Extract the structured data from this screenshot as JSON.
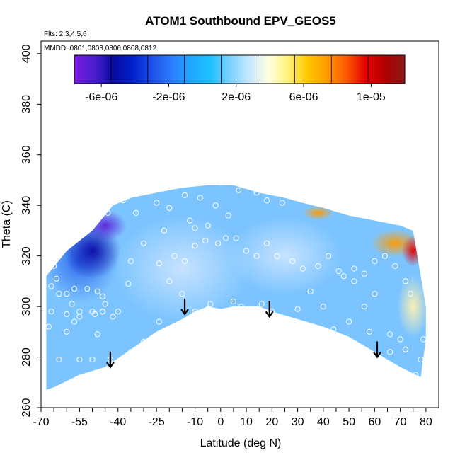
{
  "chart_data": {
    "type": "heatmap",
    "title": "ATOM1 Southbound EPV_GEOS5",
    "notes": [
      "Flts: 2,3,4,5,6",
      "MMDD: 0801,0803,0806,0808,0812"
    ],
    "xlabel": "Latitude (deg N)",
    "ylabel": "Theta (C)",
    "xlim": [
      -70,
      85
    ],
    "ylim": [
      260,
      405
    ],
    "x_ticks": [
      "-70",
      "-55",
      "-40",
      "-25",
      "-10",
      "0",
      "10",
      "20",
      "30",
      "40",
      "50",
      "60",
      "70",
      "80"
    ],
    "y_ticks": [
      "260",
      "280",
      "300",
      "320",
      "340",
      "360",
      "380",
      "400"
    ],
    "colorbar": {
      "range": [
        -7.6e-06,
        1.2e-05
      ],
      "tick_values": [
        -6e-06,
        -2e-06,
        2e-06,
        6e-06,
        1e-05
      ],
      "tick_labels": [
        "-6e-06",
        "-2e-06",
        "2e-06",
        "6e-06",
        "1e-05"
      ],
      "colors": [
        "#7a1be0",
        "#4a1fd0",
        "#0a0aa0",
        "#0020c8",
        "#1e50e8",
        "#2e7cff",
        "#1fa8ff",
        "#1ec0ff",
        "#7ad2ff",
        "#c6e8ff",
        "#ffffe0",
        "#fff27a",
        "#ffc800",
        "#ff9a00",
        "#ff5800",
        "#e40000",
        "#b00000",
        "#8a1a1a"
      ]
    },
    "domain_upper_theta": [
      [
        -68,
        312
      ],
      [
        -60,
        322
      ],
      [
        -50,
        330
      ],
      [
        -42,
        340
      ],
      [
        -35,
        343
      ],
      [
        -25,
        345
      ],
      [
        -15,
        347
      ],
      [
        -5,
        348
      ],
      [
        5,
        348
      ],
      [
        15,
        345
      ],
      [
        25,
        343
      ],
      [
        32,
        341
      ],
      [
        40,
        339
      ],
      [
        50,
        336
      ],
      [
        60,
        334
      ],
      [
        70,
        332
      ],
      [
        75,
        330
      ],
      [
        80,
        300
      ],
      [
        80,
        287
      ]
    ],
    "domain_lower_theta": [
      [
        -68,
        267
      ],
      [
        -65,
        268
      ],
      [
        -55,
        273
      ],
      [
        -45,
        276
      ],
      [
        -35,
        283
      ],
      [
        -25,
        290
      ],
      [
        -15,
        295
      ],
      [
        -10,
        298
      ],
      [
        -5,
        300
      ],
      [
        0,
        299
      ],
      [
        5,
        300
      ],
      [
        15,
        300
      ],
      [
        20,
        298
      ],
      [
        30,
        295
      ],
      [
        40,
        292
      ],
      [
        50,
        288
      ],
      [
        60,
        282
      ],
      [
        70,
        276
      ],
      [
        78,
        272
      ]
    ],
    "arrows": [
      {
        "lat": -43,
        "theta": 276
      },
      {
        "lat": -14,
        "theta": 297
      },
      {
        "lat": 19,
        "theta": 296
      },
      {
        "lat": 61,
        "theta": 280
      }
    ],
    "points": [
      [
        -65,
        316
      ],
      [
        -68,
        314
      ],
      [
        -64,
        311
      ],
      [
        -66,
        308
      ],
      [
        -63,
        305
      ],
      [
        -60,
        305
      ],
      [
        -57,
        307
      ],
      [
        -52,
        307
      ],
      [
        -48,
        306
      ],
      [
        -46,
        304
      ],
      [
        -45,
        301
      ],
      [
        -58,
        301
      ],
      [
        -55,
        298
      ],
      [
        -50,
        298
      ],
      [
        -46,
        298
      ],
      [
        -49,
        297
      ],
      [
        -55,
        296
      ],
      [
        -60,
        297
      ],
      [
        -57,
        294
      ],
      [
        -66,
        298
      ],
      [
        -67,
        292
      ],
      [
        -60,
        290
      ],
      [
        -48,
        289
      ],
      [
        -46,
        298
      ],
      [
        -40,
        298
      ],
      [
        -42,
        296
      ],
      [
        -36,
        309
      ],
      [
        -35,
        318
      ],
      [
        -30,
        325
      ],
      [
        -33,
        337
      ],
      [
        -38,
        342
      ],
      [
        -44,
        337
      ],
      [
        -25,
        341
      ],
      [
        -20,
        339
      ],
      [
        -14,
        344
      ],
      [
        -8,
        343
      ],
      [
        -2,
        340
      ],
      [
        3,
        336
      ],
      [
        7,
        346
      ],
      [
        14,
        345
      ],
      [
        18,
        342
      ],
      [
        24,
        341
      ],
      [
        30,
        343
      ],
      [
        -22,
        330
      ],
      [
        -18,
        320
      ],
      [
        -14,
        318
      ],
      [
        -10,
        324
      ],
      [
        -6,
        326
      ],
      [
        -1,
        325
      ],
      [
        2,
        327
      ],
      [
        6,
        327
      ],
      [
        10,
        322
      ],
      [
        14,
        320
      ],
      [
        18,
        325
      ],
      [
        22,
        320
      ],
      [
        28,
        318
      ],
      [
        32,
        315
      ],
      [
        38,
        316
      ],
      [
        42,
        320
      ],
      [
        46,
        314
      ],
      [
        52,
        315
      ],
      [
        56,
        313
      ],
      [
        60,
        318
      ],
      [
        64,
        320
      ],
      [
        68,
        316
      ],
      [
        72,
        310
      ],
      [
        74,
        305
      ],
      [
        -24,
        317
      ],
      [
        -20,
        310
      ],
      [
        -15,
        305
      ],
      [
        -10,
        298
      ],
      [
        -5,
        299
      ],
      [
        0,
        298
      ],
      [
        5,
        302
      ],
      [
        8,
        300
      ],
      [
        12,
        298
      ],
      [
        16,
        301
      ],
      [
        20,
        298
      ],
      [
        28,
        293
      ],
      [
        36,
        292
      ],
      [
        44,
        291
      ],
      [
        50,
        294
      ],
      [
        58,
        290
      ],
      [
        66,
        289
      ],
      [
        70,
        287
      ],
      [
        -63,
        279
      ],
      [
        -55,
        279
      ],
      [
        -50,
        279
      ],
      [
        -43,
        279
      ],
      [
        -35,
        282
      ],
      [
        -30,
        286
      ],
      [
        -24,
        294
      ],
      [
        62,
        279
      ],
      [
        66,
        282
      ],
      [
        72,
        283
      ],
      [
        78,
        279
      ],
      [
        79,
        287
      ],
      [
        76,
        273
      ],
      [
        48,
        312
      ],
      [
        52,
        310
      ],
      [
        56,
        300
      ],
      [
        60,
        305
      ],
      [
        40,
        300
      ],
      [
        35,
        306
      ],
      [
        45,
        283
      ],
      [
        30,
        299
      ],
      [
        -4,
        301
      ],
      [
        -1,
        351
      ],
      [
        0,
        349
      ],
      [
        -10,
        331
      ],
      [
        -5,
        332
      ],
      [
        -12,
        334
      ]
    ]
  }
}
